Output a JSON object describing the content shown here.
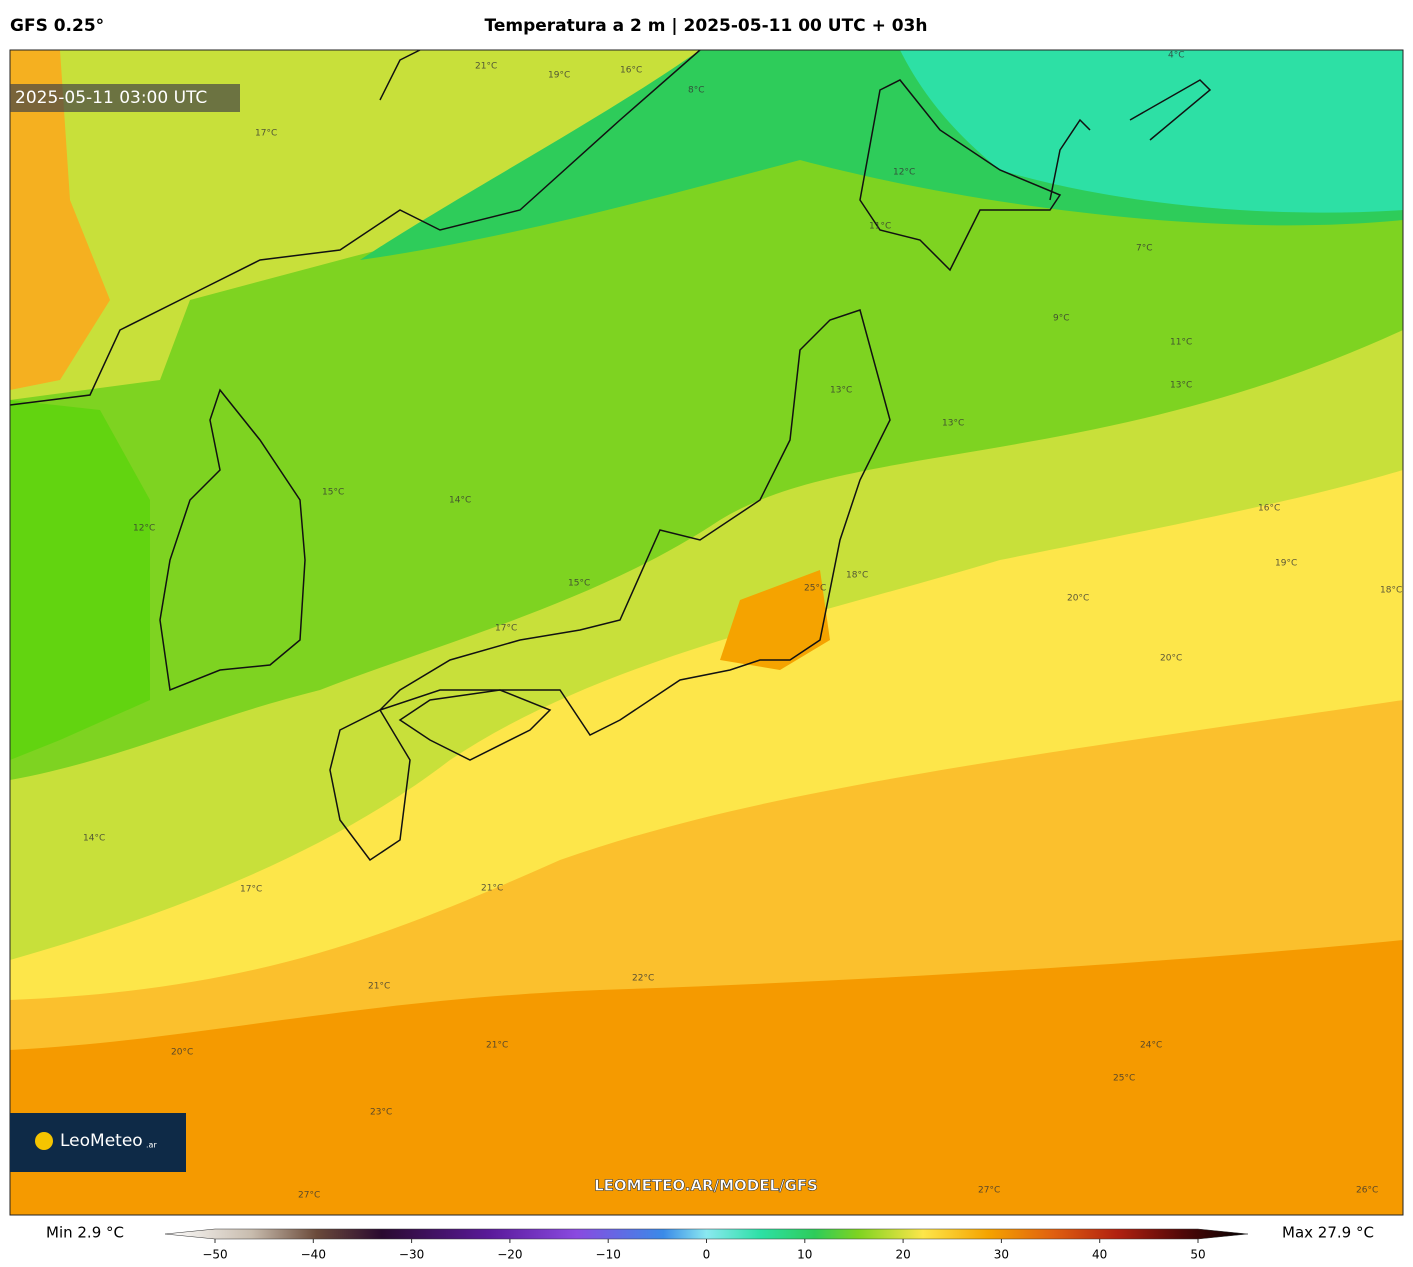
{
  "header": {
    "model": "GFS 0.25°",
    "title": "Temperatura a 2 m | 2025-05-11 00 UTC + 03h"
  },
  "map": {
    "timestamp": "2025-05-11 03:00 UTC",
    "watermark": "LEOMETEO.AR/MODEL/GFS",
    "logo": {
      "name": "LeoMeteo",
      "suffix": ".ar"
    },
    "contour_labels": [
      "21°C",
      "16°C",
      "19°C",
      "17°C",
      "8°C",
      "4°C",
      "12°C",
      "11°C",
      "7°C",
      "9°C",
      "11°C",
      "13°C",
      "13°C",
      "16°C",
      "19°C",
      "18°C",
      "20°C",
      "20°C",
      "14°C",
      "15°C",
      "15°C",
      "17°C",
      "18°C",
      "25°C",
      "13°C",
      "12°C",
      "14°C",
      "17°C",
      "21°C",
      "22°C",
      "21°C",
      "20°C",
      "21°C",
      "23°C",
      "24°C",
      "25°C",
      "27°C",
      "27°C",
      "26°C"
    ]
  },
  "colorbar": {
    "min_label": "Min 2.9 °C",
    "max_label": "Max 27.9 °C",
    "range": [
      -55,
      54
    ],
    "ticks": [
      {
        "value": -50,
        "label": "−50"
      },
      {
        "value": -40,
        "label": "−40"
      },
      {
        "value": -30,
        "label": "−30"
      },
      {
        "value": -20,
        "label": "−20"
      },
      {
        "value": -10,
        "label": "−10"
      },
      0,
      10,
      20,
      30,
      40,
      50
    ]
  }
}
